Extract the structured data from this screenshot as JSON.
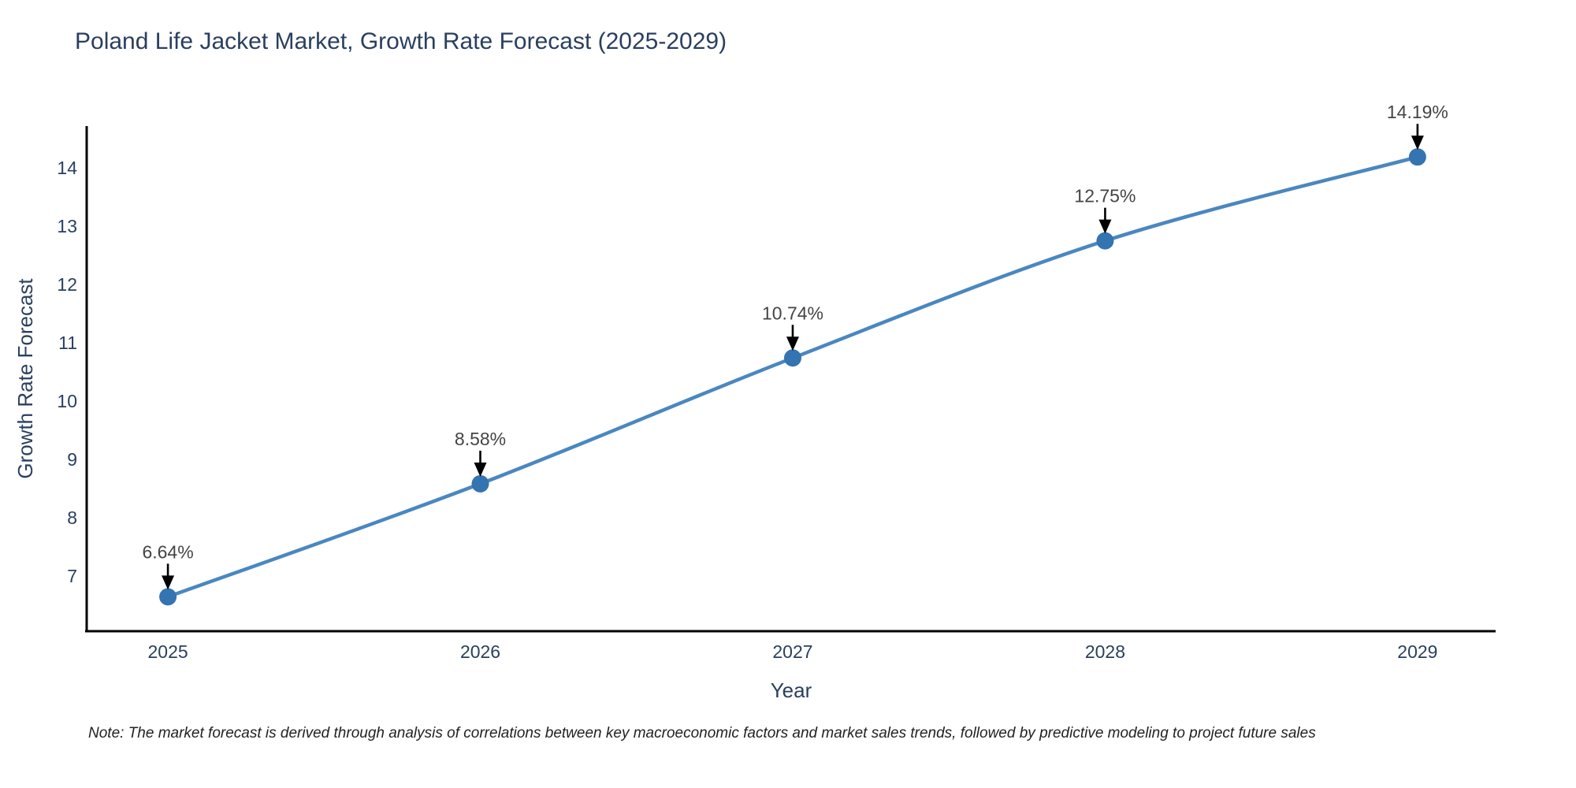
{
  "chart_data": {
    "type": "line",
    "title": "Poland Life Jacket Market, Growth Rate Forecast (2025-2029)",
    "xlabel": "Year",
    "ylabel": "Growth Rate Forecast",
    "x": [
      2025,
      2026,
      2027,
      2028,
      2029
    ],
    "y": [
      6.64,
      8.58,
      10.74,
      12.75,
      14.19
    ],
    "point_labels": [
      "6.64%",
      "8.58%",
      "10.74%",
      "12.75%",
      "14.19%"
    ],
    "x_tick_labels": [
      "2025",
      "2026",
      "2027",
      "2028",
      "2029"
    ],
    "y_tick_values": [
      7,
      8,
      9,
      10,
      11,
      12,
      13,
      14
    ],
    "x_range": [
      2024.74,
      2029.25
    ],
    "y_range": [
      6.05,
      14.72
    ],
    "grid": false,
    "legend_position": "none",
    "line_color": "#4a87c0",
    "marker_color": "#3474b0",
    "annotation_arrow_color": "#000000",
    "axis_color": "#000000",
    "axis_text_color": "#2a3f5f",
    "annotation_text_color": "#444444"
  },
  "note": "Note: The market forecast is derived through analysis of correlations between key macroeconomic factors and market sales trends, followed by predictive modeling to project future sales"
}
